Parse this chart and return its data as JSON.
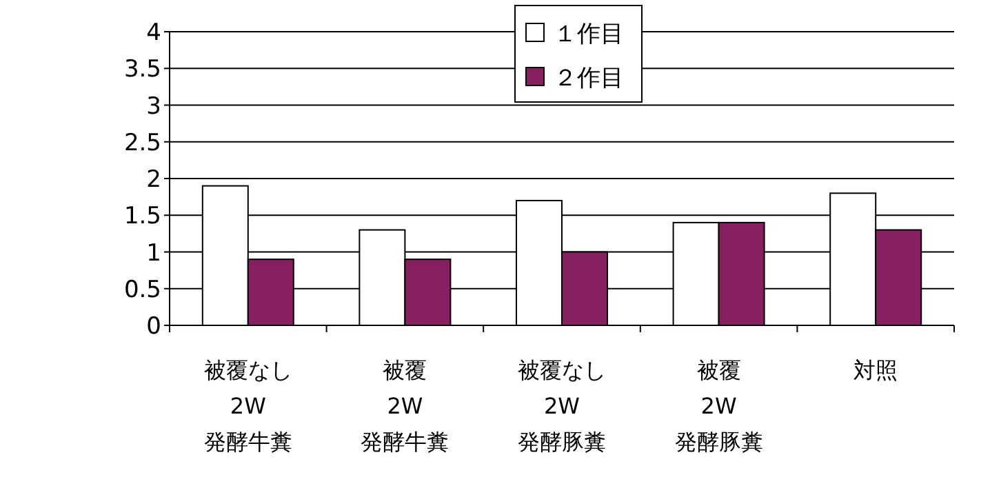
{
  "chart_data": {
    "type": "bar",
    "categories": [
      "被覆なし\n2W\n発酵牛糞",
      "被覆\n2W\n発酵牛糞",
      "被覆なし\n2W\n発酵豚糞",
      "被覆\n2W\n発酵豚糞",
      "対照"
    ],
    "series": [
      {
        "name": "１作目",
        "color": "#ffffff",
        "values": [
          1.9,
          1.3,
          1.7,
          1.4,
          1.8
        ]
      },
      {
        "name": "２作目",
        "color": "#862060",
        "values": [
          0.9,
          0.9,
          1.0,
          1.4,
          1.3
        ]
      }
    ],
    "ylim": [
      0,
      4
    ],
    "yticks": [
      0,
      0.5,
      1,
      1.5,
      2,
      2.5,
      3,
      3.5,
      4
    ],
    "grid": "y",
    "legend": "top"
  }
}
